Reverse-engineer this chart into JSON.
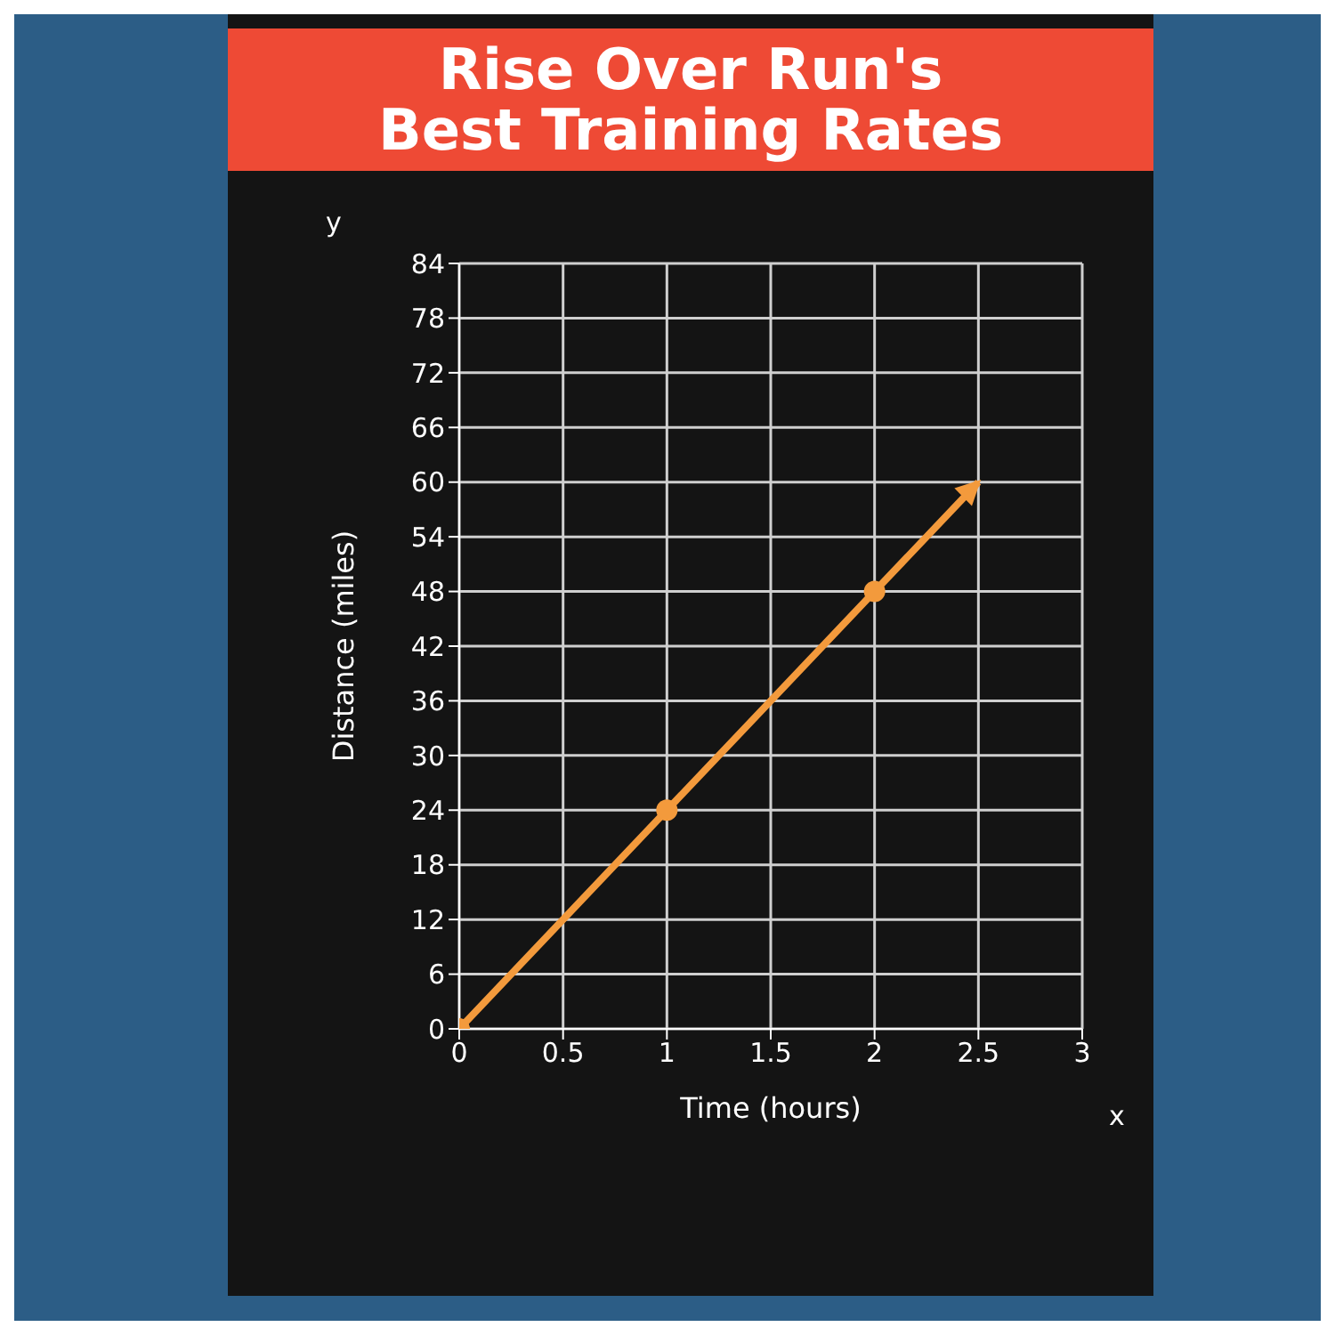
{
  "chart_data": {
    "type": "line",
    "title": "Rise Over Run's\nBest Training Rates",
    "xlabel": "Time (hours)",
    "ylabel": "Distance (miles)",
    "x": [
      0,
      1,
      2,
      2.5
    ],
    "series": [
      {
        "color": "#f39a3c",
        "values": [
          0,
          24,
          48,
          60
        ]
      }
    ],
    "xlim": [
      0,
      3
    ],
    "xticks": [
      0,
      0.5,
      1,
      1.5,
      2,
      2.5,
      3
    ],
    "ylim": [
      0,
      84
    ],
    "yticks": [
      0,
      6,
      12,
      18,
      24,
      30,
      36,
      42,
      48,
      54,
      60,
      66,
      72,
      78,
      84
    ],
    "grid": true,
    "marker": "circle",
    "line_style": "solid",
    "annotations": [
      "x",
      "y"
    ]
  }
}
